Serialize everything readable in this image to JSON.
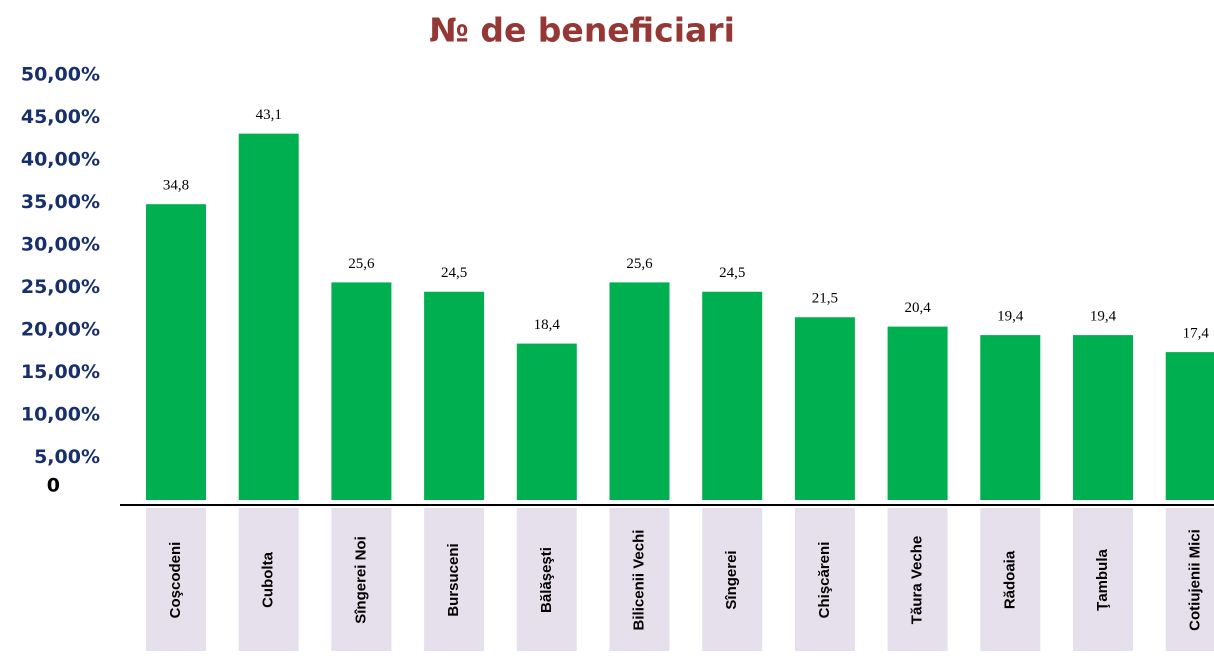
{
  "chart_data": {
    "type": "bar",
    "title": "№ de beneficiari",
    "categories": [
      "Coşcodeni",
      "Cubolta",
      "Sîngerei Noi",
      "Bursuceni",
      "Bălăşeşti",
      "Bilicenii Vechi",
      "Sîngerei",
      "Chişcăreni",
      "Tăura Veche",
      "Rădoaia",
      "Ţambula",
      "Cotiujenii Mici"
    ],
    "values": [
      34.8,
      43.1,
      25.6,
      24.5,
      18.4,
      25.6,
      24.5,
      21.5,
      20.4,
      19.4,
      19.4,
      17.4
    ],
    "value_labels": [
      "34,8",
      "43,1",
      "25,6",
      "24,5",
      "18,4",
      "25,6",
      "24,5",
      "21,5",
      "20,4",
      "19,4",
      "19,4",
      "17,4"
    ],
    "color": "#00b050",
    "ylim": [
      0,
      50
    ],
    "yticks": [
      0,
      {
        "value": 5,
        "label": "5,00%"
      },
      {
        "value": 10,
        "label": "10,00%"
      },
      {
        "value": 15,
        "label": "15,00%"
      },
      {
        "value": 20,
        "label": "20,00%"
      },
      {
        "value": 25,
        "label": "25,00%"
      },
      {
        "value": 30,
        "label": "30,00%"
      },
      {
        "value": 35,
        "label": "35,00%"
      },
      {
        "value": 40,
        "label": "40,00%"
      },
      {
        "value": 45,
        "label": "45,00%"
      },
      {
        "value": 50,
        "label": "50,00%"
      }
    ],
    "grid": false
  }
}
